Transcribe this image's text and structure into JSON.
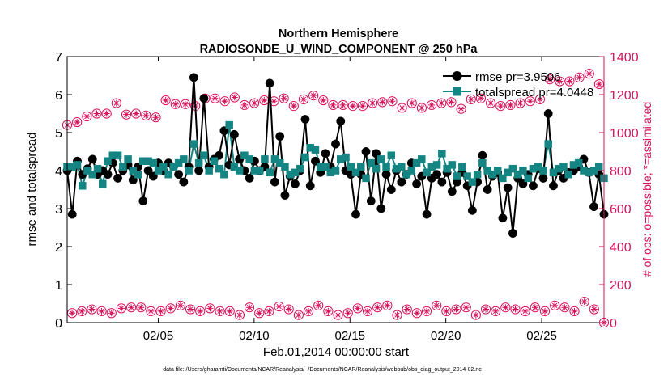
{
  "chart_data": {
    "type": "line",
    "title": "Northern Hemisphere",
    "subtitle": "RADIOSONDE_U_WIND_COMPONENT @ 250 hPa",
    "xlabel": "Feb.01,2014 00:00:00 start",
    "ylabel_left": "rmse and totalspread",
    "ylabel_right": "# of obs: o=possible; *=assimilated",
    "footer": "data file: /Users/gharamti/Documents/NCAR/Reanalysis/~/Documents/NCAR/Reanalysis/webpub/obs_diag_output_2014-02.nc",
    "xlim": [
      1.0,
      29.0
    ],
    "ylim_left": [
      0,
      7
    ],
    "ylim_right": [
      0,
      1400
    ],
    "yticks_left": [
      "0",
      "1",
      "2",
      "3",
      "4",
      "5",
      "6",
      "7"
    ],
    "yticks_right": [
      "0",
      "200",
      "400",
      "600",
      "800",
      "1000",
      "1200",
      "1400"
    ],
    "xticks": [
      {
        "pos": 5.75,
        "label": "02/05"
      },
      {
        "pos": 10.75,
        "label": "02/10"
      },
      {
        "pos": 15.75,
        "label": "02/15"
      },
      {
        "pos": 20.75,
        "label": "02/20"
      },
      {
        "pos": 25.75,
        "label": "02/25"
      }
    ],
    "legend": {
      "placement": "top-right",
      "entries": [
        "rmse pr=3.9506",
        "totalspread pr=4.0448"
      ]
    },
    "colors": {
      "rmse": "#000000",
      "totalspread": "#148582",
      "obs": "#d6125a",
      "axis": "#000000"
    },
    "series": [
      {
        "name": "rmse pr=3.9506",
        "axis": "left",
        "color": "#000000",
        "marker": "circle",
        "values": [
          4.0,
          2.85,
          4.25,
          3.9,
          4.05,
          4.3,
          3.9,
          4.0,
          3.9,
          4.2,
          3.8,
          4.0,
          4.15,
          3.75,
          4.1,
          3.2,
          4.0,
          3.85,
          4.2,
          4.0,
          4.2,
          4.1,
          3.9,
          3.7,
          4.1,
          6.45,
          4.0,
          5.9,
          4.1,
          4.3,
          4.4,
          5.05,
          4.15,
          4.95,
          4.3,
          4.0,
          3.8,
          4.25,
          4.0,
          4.1,
          6.3,
          3.7,
          4.9,
          3.35,
          3.85,
          3.65,
          4.0,
          5.35,
          3.6,
          4.25,
          3.95,
          4.45,
          4.1,
          4.7,
          5.3,
          4.0,
          3.9,
          2.85,
          3.9,
          4.5,
          3.2,
          4.45,
          3.0,
          3.9,
          3.5,
          4.0,
          3.7,
          3.9,
          4.2,
          3.65,
          3.85,
          2.85,
          3.8,
          3.9,
          3.7,
          3.95,
          3.45,
          3.7,
          3.95,
          3.6,
          2.95,
          3.7,
          4.4,
          3.5,
          3.85,
          3.95,
          2.75,
          3.55,
          2.35,
          3.8,
          3.65,
          3.9,
          3.6,
          4.05,
          3.8,
          5.5,
          3.6,
          4.0,
          3.8,
          3.95,
          4.0,
          4.1,
          4.3,
          3.95,
          3.05,
          3.9,
          2.85
        ]
      },
      {
        "name": "totalspread pr=4.0448",
        "axis": "left",
        "color": "#148582",
        "marker": "square",
        "values": [
          4.1,
          4.1,
          4.15,
          3.6,
          4.0,
          3.9,
          4.05,
          3.65,
          4.25,
          4.4,
          4.4,
          4.1,
          4.3,
          4.0,
          3.9,
          4.25,
          4.25,
          4.2,
          4.0,
          4.1,
          3.9,
          4.1,
          4.2,
          4.3,
          4.0,
          4.7,
          4.2,
          4.4,
          4.0,
          4.25,
          4.05,
          3.9,
          5.2,
          4.1,
          4.0,
          4.4,
          4.3,
          4.0,
          4.0,
          4.3,
          3.95,
          4.3,
          4.2,
          4.1,
          3.9,
          3.95,
          4.05,
          4.35,
          4.6,
          4.55,
          4.1,
          4.1,
          3.95,
          4.0,
          4.3,
          4.35,
          4.1,
          3.95,
          4.1,
          3.8,
          4.2,
          4.05,
          4.3,
          4.1,
          4.4,
          4.05,
          4.1,
          3.9,
          4.0,
          4.2,
          4.3,
          3.95,
          4.1,
          4.15,
          4.45,
          4.05,
          4.15,
          3.85,
          4.1,
          3.85,
          3.7,
          3.9,
          4.2,
          4.0,
          3.9,
          4.0,
          3.8,
          3.95,
          4.05,
          3.9,
          4.0,
          3.8,
          4.05,
          4.1,
          4.0,
          4.7,
          3.95,
          4.05,
          4.1,
          3.9,
          4.15,
          4.2,
          4.0,
          3.95,
          4.0,
          4.1,
          3.8
        ]
      },
      {
        "name": "# of obs possible",
        "axis": "right",
        "color": "#d6125a",
        "marker": "circle-open",
        "values": [
          1040,
          50,
          1055,
          60,
          1085,
          70,
          1100,
          60,
          1100,
          50,
          1155,
          75,
          1095,
          80,
          1100,
          80,
          1090,
          60,
          1080,
          60,
          1170,
          75,
          1150,
          90,
          1150,
          70,
          1140,
          60,
          1180,
          75,
          1180,
          60,
          1165,
          60,
          1185,
          40,
          1145,
          80,
          1155,
          50,
          1170,
          60,
          1165,
          85,
          1180,
          70,
          1140,
          40,
          1175,
          60,
          1195,
          90,
          1170,
          60,
          1145,
          40,
          1145,
          50,
          1140,
          75,
          1140,
          60,
          1155,
          80,
          1160,
          90,
          1165,
          40,
          1130,
          70,
          1155,
          50,
          1130,
          60,
          1145,
          90,
          1155,
          60,
          1160,
          70,
          1125,
          80,
          1175,
          40,
          1180,
          70,
          1155,
          60,
          1140,
          80,
          1145,
          70,
          1155,
          60,
          1165,
          80,
          1175,
          60,
          1280,
          90,
          1270,
          80,
          1270,
          60,
          1290,
          110,
          1310,
          70,
          1255,
          0
        ]
      },
      {
        "name": "# of obs assimilated",
        "axis": "right",
        "color": "#d6125a",
        "marker": "asterisk",
        "values": [
          1040,
          50,
          1055,
          60,
          1085,
          70,
          1100,
          60,
          1100,
          50,
          1155,
          75,
          1095,
          80,
          1100,
          80,
          1090,
          60,
          1080,
          60,
          1170,
          75,
          1150,
          90,
          1150,
          70,
          1140,
          60,
          1180,
          75,
          1180,
          60,
          1165,
          60,
          1185,
          40,
          1145,
          80,
          1155,
          50,
          1170,
          60,
          1165,
          85,
          1180,
          70,
          1140,
          40,
          1175,
          60,
          1195,
          90,
          1170,
          60,
          1145,
          40,
          1145,
          50,
          1140,
          75,
          1140,
          60,
          1155,
          80,
          1160,
          90,
          1165,
          40,
          1130,
          70,
          1155,
          50,
          1130,
          60,
          1145,
          90,
          1155,
          60,
          1160,
          70,
          1125,
          80,
          1175,
          40,
          1180,
          70,
          1155,
          60,
          1140,
          80,
          1145,
          70,
          1155,
          60,
          1165,
          80,
          1175,
          60,
          1280,
          90,
          1270,
          80,
          1270,
          60,
          1290,
          110,
          1310,
          70,
          1255,
          0
        ]
      }
    ]
  }
}
